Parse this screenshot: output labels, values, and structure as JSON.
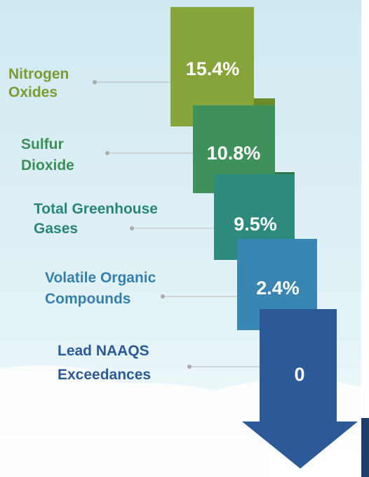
{
  "items": [
    {
      "label": [
        "Nitrogen",
        "Oxides"
      ],
      "value": "15.4%"
    },
    {
      "label": [
        "Sulfur",
        "Dioxide"
      ],
      "value": "10.8%"
    },
    {
      "label": [
        "Total Greenhouse",
        "Gases"
      ],
      "value": "9.5%"
    },
    {
      "label": [
        "Volatile Organic",
        "Compounds"
      ],
      "value": "2.4%"
    },
    {
      "label": [
        "Lead NAAQS",
        "Exceedances"
      ],
      "value": "0"
    }
  ]
}
